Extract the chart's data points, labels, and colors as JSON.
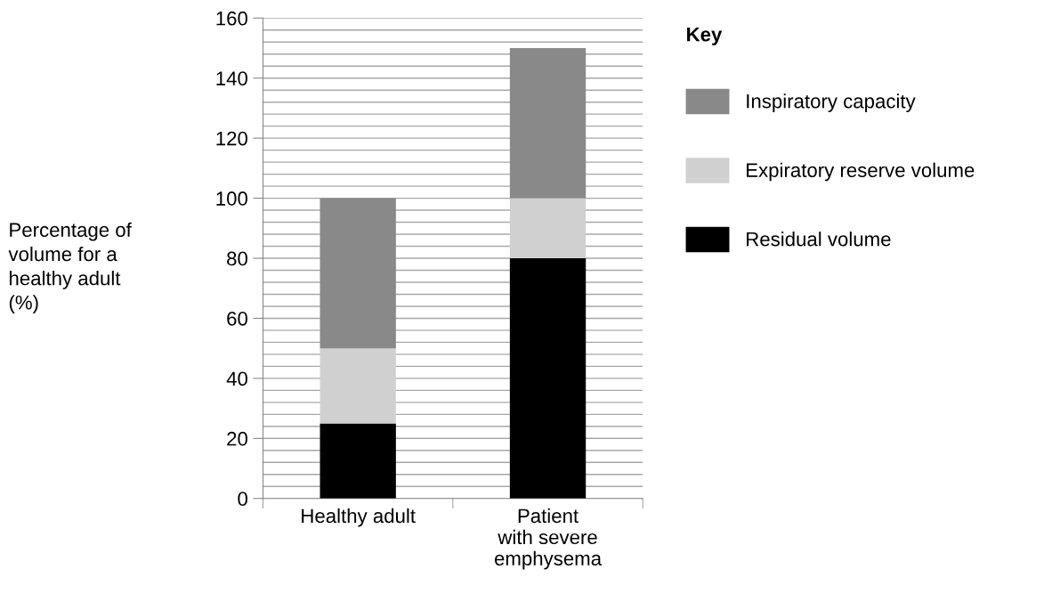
{
  "chart_data": {
    "type": "bar",
    "stacked": true,
    "categories": [
      "Healthy adult",
      "Patient\nwith severe\nemphysema"
    ],
    "ylabel": "Percentage of\nvolume for a\nhealthy adult\n(%)",
    "legend_title": "Key",
    "legend": "top right",
    "series": [
      {
        "name": "Residual volume",
        "color": "#000000",
        "values": [
          25,
          80
        ]
      },
      {
        "name": "Expiratory reserve volume",
        "color": "#d0d0d0",
        "values": [
          25,
          20
        ]
      },
      {
        "name": "Inspiratory capacity",
        "color": "#898989",
        "values": [
          50,
          50
        ]
      }
    ],
    "ylim": [
      0,
      160
    ],
    "yticks": [
      0,
      {
        "value": 4,
        "label": null
      },
      {
        "value": 8,
        "label": null
      },
      {
        "value": 12,
        "label": null
      },
      {
        "value": 16,
        "label": null
      },
      20,
      {
        "value": 24,
        "label": null
      },
      {
        "value": 28,
        "label": null
      },
      {
        "value": 32,
        "label": null
      },
      {
        "value": 36,
        "label": null
      },
      40,
      {
        "value": 44,
        "label": null
      },
      {
        "value": 48,
        "label": null
      },
      {
        "value": 52,
        "label": null
      },
      {
        "value": 56,
        "label": null
      },
      60,
      {
        "value": 64,
        "label": null
      },
      {
        "value": 68,
        "label": null
      },
      {
        "value": 72,
        "label": null
      },
      {
        "value": 76,
        "label": null
      },
      80,
      {
        "value": 84,
        "label": null
      },
      {
        "value": 88,
        "label": null
      },
      {
        "value": 92,
        "label": null
      },
      {
        "value": 96,
        "label": null
      },
      100,
      {
        "value": 104,
        "label": null
      },
      {
        "value": 108,
        "label": null
      },
      {
        "value": 112,
        "label": null
      },
      {
        "value": 116,
        "label": null
      },
      120,
      {
        "value": 124,
        "label": null
      },
      {
        "value": 128,
        "label": null
      },
      {
        "value": 132,
        "label": null
      },
      {
        "value": 136,
        "label": null
      },
      140,
      {
        "value": 144,
        "label": null
      },
      {
        "value": 148,
        "label": null
      },
      {
        "value": 152,
        "label": null
      },
      {
        "value": 156,
        "label": null
      },
      160
    ],
    "grid": "y"
  }
}
